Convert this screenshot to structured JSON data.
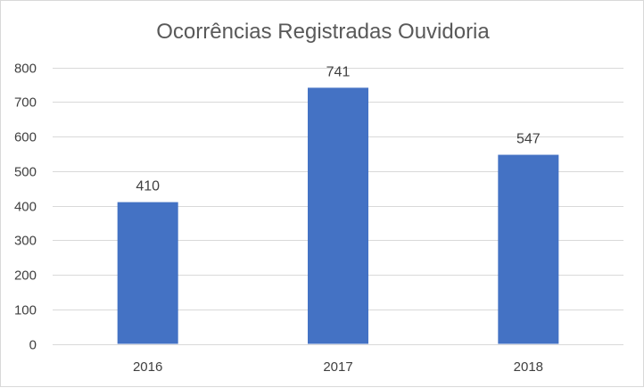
{
  "chart_data": {
    "type": "bar",
    "title": "Ocorrências Registradas Ouvidoria",
    "categories": [
      "2016",
      "2017",
      "2018"
    ],
    "values": [
      410,
      741,
      547
    ],
    "data_labels": [
      "410",
      "741",
      "547"
    ],
    "ylim": [
      0,
      800
    ],
    "yticks": [
      0,
      100,
      200,
      300,
      400,
      500,
      600,
      700,
      800
    ],
    "grid": true,
    "legend": "none",
    "bar_color": "#4472C4"
  }
}
